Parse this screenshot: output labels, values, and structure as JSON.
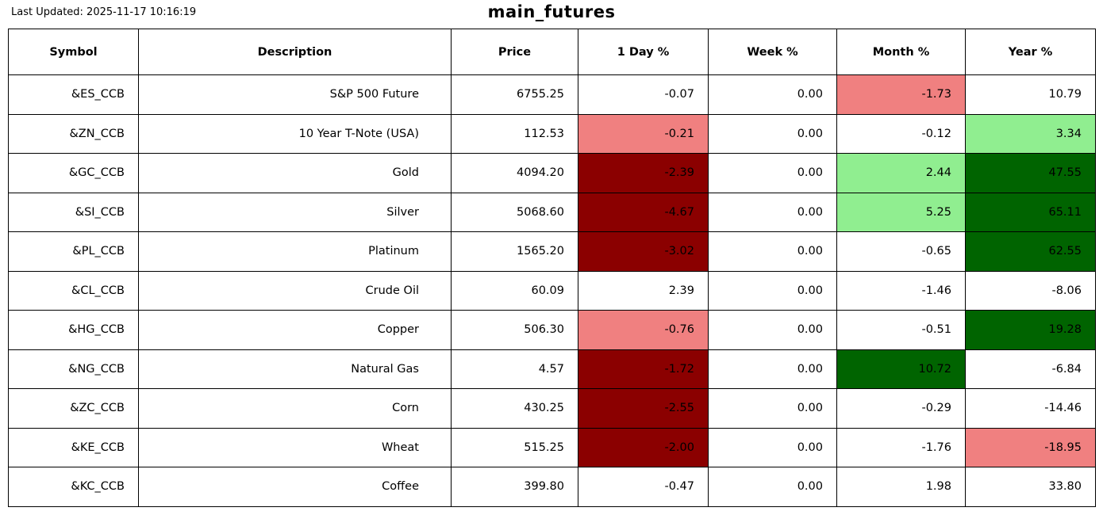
{
  "meta": {
    "last_updated": "Last Updated: 2025-11-17 10:16:19",
    "title": "main_futures"
  },
  "colors": {
    "white": "#FFFFFF",
    "lightred": "#F08080",
    "darkred": "#8B0000",
    "lightgreen": "#90EE90",
    "darkgreen": "#006400"
  },
  "table": {
    "columns": [
      "Symbol",
      "Description",
      "Price",
      "1 Day %",
      "Week %",
      "Month %",
      "Year %"
    ],
    "rows": [
      {
        "symbol": "&ES_CCB",
        "description": "S&P 500 Future",
        "price": "6755.25",
        "day": "-0.07",
        "week": "0.00",
        "month": "-1.73",
        "year": "10.79",
        "day_bg": "white",
        "week_bg": "white",
        "month_bg": "lightred",
        "year_bg": "white"
      },
      {
        "symbol": "&ZN_CCB",
        "description": "10 Year T-Note (USA)",
        "price": "112.53",
        "day": "-0.21",
        "week": "0.00",
        "month": "-0.12",
        "year": "3.34",
        "day_bg": "lightred",
        "week_bg": "white",
        "month_bg": "white",
        "year_bg": "lightgreen"
      },
      {
        "symbol": "&GC_CCB",
        "description": "Gold",
        "price": "4094.20",
        "day": "-2.39",
        "week": "0.00",
        "month": "2.44",
        "year": "47.55",
        "day_bg": "darkred",
        "week_bg": "white",
        "month_bg": "lightgreen",
        "year_bg": "darkgreen"
      },
      {
        "symbol": "&SI_CCB",
        "description": "Silver",
        "price": "5068.60",
        "day": "-4.67",
        "week": "0.00",
        "month": "5.25",
        "year": "65.11",
        "day_bg": "darkred",
        "week_bg": "white",
        "month_bg": "lightgreen",
        "year_bg": "darkgreen"
      },
      {
        "symbol": "&PL_CCB",
        "description": "Platinum",
        "price": "1565.20",
        "day": "-3.02",
        "week": "0.00",
        "month": "-0.65",
        "year": "62.55",
        "day_bg": "darkred",
        "week_bg": "white",
        "month_bg": "white",
        "year_bg": "darkgreen"
      },
      {
        "symbol": "&CL_CCB",
        "description": "Crude Oil",
        "price": "60.09",
        "day": "2.39",
        "week": "0.00",
        "month": "-1.46",
        "year": "-8.06",
        "day_bg": "white",
        "week_bg": "white",
        "month_bg": "white",
        "year_bg": "white"
      },
      {
        "symbol": "&HG_CCB",
        "description": "Copper",
        "price": "506.30",
        "day": "-0.76",
        "week": "0.00",
        "month": "-0.51",
        "year": "19.28",
        "day_bg": "lightred",
        "week_bg": "white",
        "month_bg": "white",
        "year_bg": "darkgreen"
      },
      {
        "symbol": "&NG_CCB",
        "description": "Natural Gas",
        "price": "4.57",
        "day": "-1.72",
        "week": "0.00",
        "month": "10.72",
        "year": "-6.84",
        "day_bg": "darkred",
        "week_bg": "white",
        "month_bg": "darkgreen",
        "year_bg": "white"
      },
      {
        "symbol": "&ZC_CCB",
        "description": "Corn",
        "price": "430.25",
        "day": "-2.55",
        "week": "0.00",
        "month": "-0.29",
        "year": "-14.46",
        "day_bg": "darkred",
        "week_bg": "white",
        "month_bg": "white",
        "year_bg": "white"
      },
      {
        "symbol": "&KE_CCB",
        "description": "Wheat",
        "price": "515.25",
        "day": "-2.00",
        "week": "0.00",
        "month": "-1.76",
        "year": "-18.95",
        "day_bg": "darkred",
        "week_bg": "white",
        "month_bg": "white",
        "year_bg": "lightred"
      },
      {
        "symbol": "&KC_CCB",
        "description": "Coffee",
        "price": "399.80",
        "day": "-0.47",
        "week": "0.00",
        "month": "1.98",
        "year": "33.80",
        "day_bg": "white",
        "week_bg": "white",
        "month_bg": "white",
        "year_bg": "white"
      }
    ]
  }
}
